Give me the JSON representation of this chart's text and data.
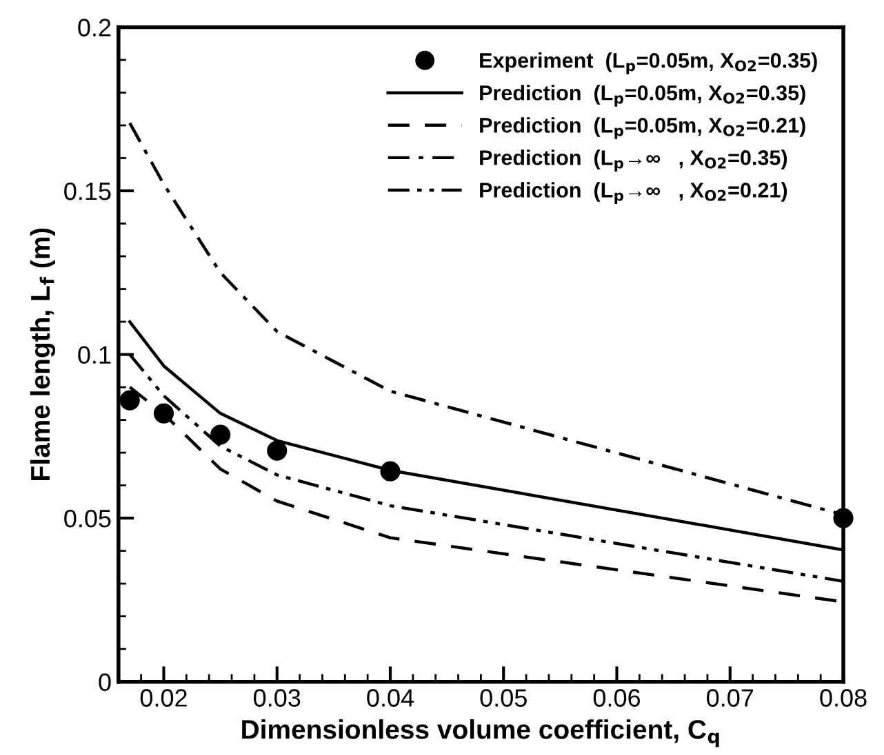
{
  "chart_data": {
    "type": "line",
    "xlabel": "Dimensionless volume coefficient, C$_{q}$",
    "ylabel": "Flame length, L$_{f}$ (m)",
    "x": [
      0.017,
      0.02,
      0.025,
      0.03,
      0.04,
      0.08
    ],
    "series": [
      {
        "name": "Experiment  (L$_{p}$=0.05m, X$_{O2}$=0.35)",
        "type": "scatter",
        "marker": "circle",
        "color": "#000000",
        "values": [
          0.086,
          0.082,
          0.0755,
          0.0706,
          0.0643,
          0.05
        ]
      },
      {
        "name": "Prediction  (L$_{p}$=0.05m, X$_{O2}$=0.35)",
        "line_style": "solid",
        "color": "#000000",
        "values": [
          0.11,
          0.0965,
          0.082,
          0.0737,
          0.0646,
          0.0403
        ]
      },
      {
        "name": "Prediction  (L$_{p}$=0.05m, X$_{O2}$=0.21)",
        "line_style": "dashed",
        "color": "#000000",
        "values": [
          0.09,
          0.0818,
          0.065,
          0.0552,
          0.044,
          0.0244
        ]
      },
      {
        "name": "Prediction  (L$_{p}$→∞   , X$_{O2}$=0.35)",
        "line_style": "dashdot",
        "color": "#000000",
        "values": [
          0.1707,
          0.152,
          0.125,
          0.107,
          0.0888,
          0.051
        ]
      },
      {
        "name": "Prediction  (L$_{p}$→∞   , X$_{O2}$=0.21)",
        "line_style": "dashdotdot",
        "color": "#000000",
        "values": [
          0.1,
          0.0874,
          0.072,
          0.0632,
          0.0538,
          0.0307
        ]
      }
    ],
    "xlim": [
      0.016,
      0.08
    ],
    "xticks": [
      0.02,
      0.03,
      0.04,
      0.05,
      0.06,
      0.07,
      0.08
    ],
    "ylim": [
      0,
      0.2
    ],
    "yticks": [
      0,
      0.05,
      0.1,
      0.15,
      0.2
    ],
    "grid": false,
    "legend": "top right"
  }
}
